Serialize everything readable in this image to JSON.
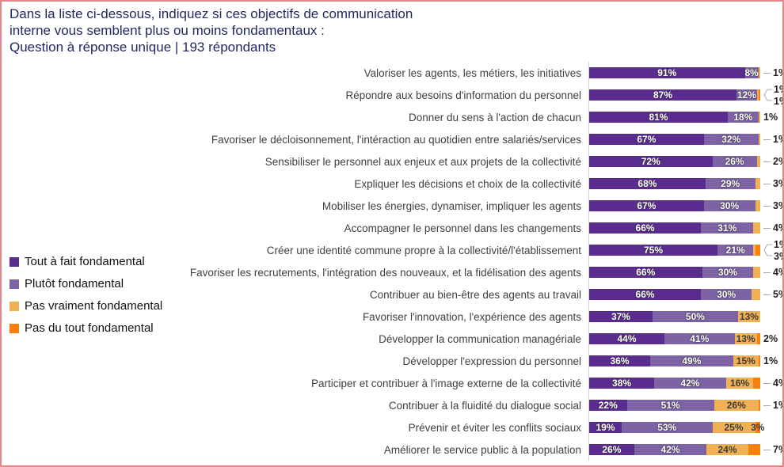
{
  "frame": {
    "border_color": "#E6868B",
    "background": "#ffffff"
  },
  "title": {
    "lines": [
      "Dans la liste ci-dessous, indiquez si ces objectifs de communication",
      "interne vous semblent plus ou moins fondamentaux :",
      "Question à réponse unique | 193 répondants"
    ],
    "color": "#232862"
  },
  "colors": {
    "s0": "#5B2C8F",
    "s1": "#7D63A4",
    "s2": "#EFB056",
    "s3": "#F9800A"
  },
  "legend": {
    "position": "left",
    "items": [
      {
        "key": "s0",
        "label": "Tout à fait fondamental"
      },
      {
        "key": "s1",
        "label": "Plutôt fondamental"
      },
      {
        "key": "s2",
        "label": "Pas vraiment fondamental"
      },
      {
        "key": "s3",
        "label": "Pas du tout fondamental"
      }
    ]
  },
  "chart_data": {
    "type": "bar",
    "orientation": "horizontal-stacked-100pct",
    "unit": "%",
    "respondents": 193,
    "grid": false,
    "series": [
      "Tout à fait fondamental",
      "Plutôt fondamental",
      "Pas vraiment fondamental",
      "Pas du tout fondamental"
    ],
    "rows": [
      {
        "category": "Valoriser les agents, les métiers, les initiatives",
        "values": [
          91,
          8,
          1,
          0
        ],
        "inside_labels": [
          "91%",
          "8%",
          null,
          null
        ],
        "outside_labels": [
          {
            "text": "1%",
            "leader": true
          }
        ]
      },
      {
        "category": "Répondre aux besoins d'information du personnel",
        "values": [
          87,
          12,
          1,
          1
        ],
        "inside_labels": [
          "87%",
          "12%",
          null,
          null
        ],
        "outside_labels": [
          {
            "text": "1%",
            "leader": true
          },
          {
            "text": "1%",
            "leader": true
          }
        ]
      },
      {
        "category": "Donner du sens à l'action de chacun",
        "values": [
          81,
          18,
          1,
          0
        ],
        "inside_labels": [
          "81%",
          "18%",
          null,
          null
        ],
        "outside_labels": [
          {
            "text": "1%",
            "leader": false
          }
        ]
      },
      {
        "category": "Favoriser le décloisonnement, l'intéraction au quotidien entre salariés/services",
        "values": [
          67,
          32,
          1,
          0
        ],
        "inside_labels": [
          "67%",
          "32%",
          null,
          null
        ],
        "outside_labels": [
          {
            "text": "1%",
            "leader": true
          }
        ]
      },
      {
        "category": "Sensibiliser le personnel aux enjeux et aux projets de la collectivité",
        "values": [
          72,
          26,
          2,
          0
        ],
        "inside_labels": [
          "72%",
          "26%",
          null,
          null
        ],
        "outside_labels": [
          {
            "text": "2%",
            "leader": true
          }
        ]
      },
      {
        "category": "Expliquer les décisions et choix de la collectivité",
        "values": [
          68,
          29,
          3,
          0
        ],
        "inside_labels": [
          "68%",
          "29%",
          null,
          null
        ],
        "outside_labels": [
          {
            "text": "3%",
            "leader": true
          }
        ]
      },
      {
        "category": "Mobiliser les énergies, dynamiser, impliquer les agents",
        "values": [
          67,
          30,
          3,
          0
        ],
        "inside_labels": [
          "67%",
          "30%",
          null,
          null
        ],
        "outside_labels": [
          {
            "text": "3%",
            "leader": true
          }
        ]
      },
      {
        "category": "Accompagner le personnel dans les changements",
        "values": [
          66,
          31,
          4,
          0
        ],
        "inside_labels": [
          "66%",
          "31%",
          null,
          null
        ],
        "outside_labels": [
          {
            "text": "4%",
            "leader": true
          }
        ]
      },
      {
        "category": "Créer une identité commune propre à la collectivité/l'établissement",
        "values": [
          75,
          21,
          1,
          3
        ],
        "inside_labels": [
          "75%",
          "21%",
          null,
          null
        ],
        "outside_labels": [
          {
            "text": "1%",
            "leader": true
          },
          {
            "text": "3%",
            "leader": true
          }
        ]
      },
      {
        "category": "Favoriser les recrutements, l'intégration des nouveaux, et la fidélisation des agents",
        "values": [
          66,
          30,
          4,
          0
        ],
        "inside_labels": [
          "66%",
          "30%",
          null,
          null
        ],
        "outside_labels": [
          {
            "text": "4%",
            "leader": true
          }
        ]
      },
      {
        "category": "Contribuer au bien-être des agents au travail",
        "values": [
          66,
          30,
          5,
          0
        ],
        "inside_labels": [
          "66%",
          "30%",
          null,
          null
        ],
        "outside_labels": [
          {
            "text": "5%",
            "leader": true
          }
        ]
      },
      {
        "category": "Favoriser l'innovation, l'expérience des agents",
        "values": [
          37,
          50,
          13,
          0
        ],
        "inside_labels": [
          "37%",
          "50%",
          "13%",
          null
        ],
        "outside_labels": []
      },
      {
        "category": "Développer la communication managériale",
        "values": [
          44,
          41,
          13,
          2
        ],
        "inside_labels": [
          "44%",
          "41%",
          "13%",
          null
        ],
        "outside_labels": [
          {
            "text": "2%",
            "leader": false
          }
        ]
      },
      {
        "category": "Développer l'expression du personnel",
        "values": [
          36,
          49,
          15,
          1
        ],
        "inside_labels": [
          "36%",
          "49%",
          "15%",
          null
        ],
        "outside_labels": [
          {
            "text": "1%",
            "leader": false
          }
        ]
      },
      {
        "category": "Participer et contribuer à l'image externe de la collectivité",
        "values": [
          38,
          42,
          16,
          4
        ],
        "inside_labels": [
          "38%",
          "42%",
          "16%",
          null
        ],
        "outside_labels": [
          {
            "text": "4%",
            "leader": true
          }
        ]
      },
      {
        "category": "Contribuer à la fluidité du dialogue social",
        "values": [
          22,
          51,
          26,
          1
        ],
        "inside_labels": [
          "22%",
          "51%",
          "26%",
          null
        ],
        "outside_labels": [
          {
            "text": "1%",
            "leader": true
          }
        ]
      },
      {
        "category": "Prévenir et éviter les conflits sociaux",
        "values": [
          19,
          53,
          25,
          3
        ],
        "inside_labels": [
          "19%",
          "53%",
          "25%",
          "3%"
        ],
        "outside_labels": []
      },
      {
        "category": "Améliorer le service public à la population",
        "values": [
          26,
          42,
          24,
          7
        ],
        "inside_labels": [
          "26%",
          "42%",
          "24%",
          null
        ],
        "outside_labels": [
          {
            "text": "7%",
            "leader": true
          }
        ]
      }
    ]
  }
}
